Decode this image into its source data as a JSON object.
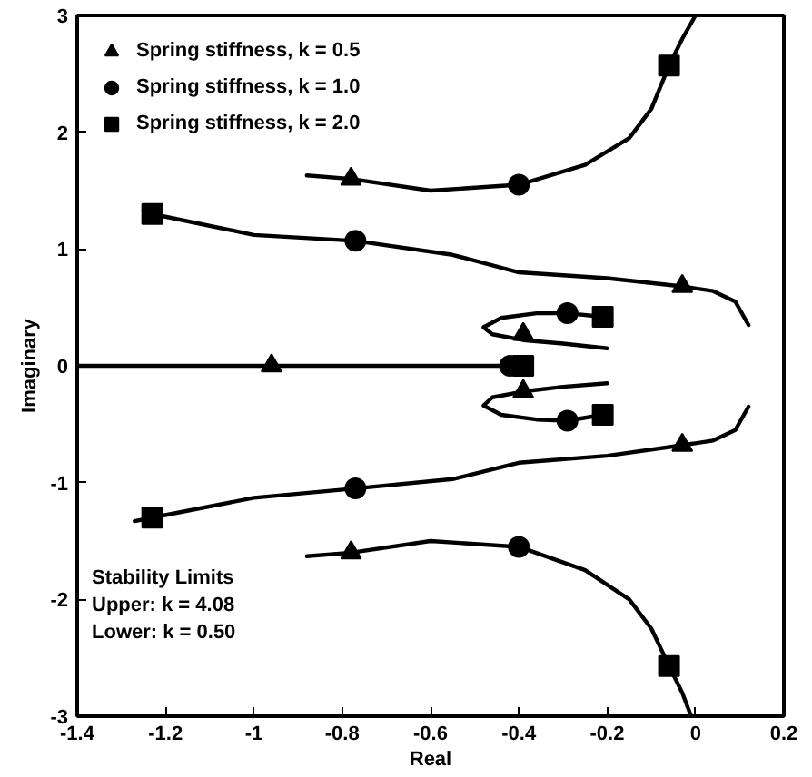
{
  "chart_data": {
    "type": "line",
    "xlabel": "Real",
    "ylabel": "Imaginary",
    "xlim": [
      -1.4,
      0.2
    ],
    "ylim": [
      -3,
      3
    ],
    "xticks": [
      -1.4,
      -1.2,
      -1,
      -0.8,
      -0.6,
      -0.4,
      -0.2,
      0,
      0.2
    ],
    "yticks": [
      -3,
      -2,
      -1,
      0,
      1,
      2,
      3
    ],
    "grid": false,
    "legend": "top left",
    "annotations": [
      "Stability Limits",
      "Upper:  k = 4.08",
      "Lower: k = 0.50"
    ],
    "series": [
      {
        "color": "#000000",
        "marker": "none",
        "x": [
          -0.88,
          -0.78,
          -0.6,
          -0.4,
          -0.25,
          -0.15,
          -0.1,
          -0.06,
          -0.03,
          0.0
        ],
        "values": [
          1.63,
          1.6,
          1.5,
          1.55,
          1.72,
          1.95,
          2.2,
          2.57,
          2.8,
          3.0
        ]
      },
      {
        "color": "#000000",
        "marker": "none",
        "x": [
          -0.88,
          -0.78,
          -0.6,
          -0.4,
          -0.25,
          -0.15,
          -0.1,
          -0.06,
          -0.03,
          -0.01
        ],
        "values": [
          -1.63,
          -1.6,
          -1.5,
          -1.55,
          -1.75,
          -2.0,
          -2.25,
          -2.57,
          -2.8,
          -3.0
        ]
      },
      {
        "color": "#000000",
        "marker": "none",
        "x": [
          -1.25,
          -1.23,
          -1.0,
          -0.77,
          -0.55,
          -0.4,
          -0.2,
          -0.03,
          0.04,
          0.09,
          0.12
        ],
        "values": [
          1.33,
          1.3,
          1.12,
          1.07,
          0.95,
          0.8,
          0.75,
          0.68,
          0.64,
          0.55,
          0.35
        ]
      },
      {
        "color": "#000000",
        "marker": "none",
        "x": [
          -1.27,
          -1.23,
          -1.0,
          -0.77,
          -0.55,
          -0.4,
          -0.2,
          -0.03,
          0.04,
          0.09,
          0.12
        ],
        "values": [
          -1.33,
          -1.3,
          -1.13,
          -1.05,
          -0.97,
          -0.83,
          -0.77,
          -0.68,
          -0.64,
          -0.55,
          -0.35
        ]
      },
      {
        "color": "#000000",
        "marker": "none",
        "x": [
          -0.2,
          -0.3,
          -0.39,
          -0.46,
          -0.48,
          -0.44,
          -0.36,
          -0.29,
          -0.21
        ],
        "values": [
          0.15,
          0.19,
          0.22,
          0.27,
          0.33,
          0.41,
          0.45,
          0.45,
          0.42
        ]
      },
      {
        "color": "#000000",
        "marker": "none",
        "x": [
          -0.2,
          -0.3,
          -0.39,
          -0.46,
          -0.48,
          -0.44,
          -0.36,
          -0.29,
          -0.21
        ],
        "values": [
          -0.15,
          -0.18,
          -0.22,
          -0.27,
          -0.34,
          -0.42,
          -0.46,
          -0.47,
          -0.42
        ]
      },
      {
        "color": "#000000",
        "marker": "none",
        "x": [
          -1.4,
          -1.0,
          -0.6,
          -0.39
        ],
        "values": [
          0,
          0,
          0,
          0
        ]
      },
      {
        "type": "scatter",
        "name": "Spring stiffness, k = 0.5",
        "color": "#000000",
        "marker": "triangle",
        "x": [
          -0.78,
          -0.78,
          -0.03,
          -0.03,
          -0.39,
          -0.39,
          -0.96
        ],
        "values": [
          1.6,
          -1.6,
          0.68,
          -0.68,
          0.27,
          -0.22,
          0
        ]
      },
      {
        "type": "scatter",
        "name": "Spring stiffness, k = 1.0",
        "color": "#000000",
        "marker": "circle",
        "x": [
          -0.4,
          -0.4,
          -0.77,
          -0.77,
          -0.29,
          -0.29,
          -0.42
        ],
        "values": [
          1.55,
          -1.55,
          1.07,
          -1.05,
          0.45,
          -0.47,
          0
        ]
      },
      {
        "type": "scatter",
        "name": "Spring stiffness, k = 2.0",
        "color": "#000000",
        "marker": "square",
        "x": [
          -0.06,
          -0.06,
          -1.23,
          -1.23,
          -0.21,
          -0.21,
          -0.39
        ],
        "values": [
          2.57,
          -2.57,
          1.3,
          -1.3,
          0.42,
          -0.42,
          0
        ]
      }
    ]
  }
}
